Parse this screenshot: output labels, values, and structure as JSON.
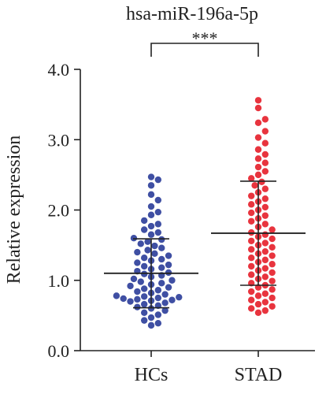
{
  "chart_data": {
    "type": "scatter",
    "title": "hsa-miR-196a-5p",
    "ylabel": "Relative expression",
    "xlabel": "",
    "categories": [
      "HCs",
      "STAD"
    ],
    "yticks": [
      "0.0",
      "1.0",
      "2.0",
      "3.0",
      "4.0"
    ],
    "ylim": [
      0,
      4.0
    ],
    "grid": false,
    "significance": {
      "label": "***",
      "between": [
        "HCs",
        "STAD"
      ]
    },
    "series": [
      {
        "category": "HCs",
        "color": "#3f4fa3",
        "mean": 1.1,
        "sd_upper": 1.59,
        "sd_lower": 0.61,
        "values": [
          2.47,
          2.43,
          2.35,
          2.22,
          2.14,
          2.05,
          1.97,
          1.93,
          1.85,
          1.8,
          1.77,
          1.72,
          1.68,
          1.65,
          1.6,
          1.58,
          1.55,
          1.52,
          1.49,
          1.46,
          1.43,
          1.4,
          1.38,
          1.35,
          1.32,
          1.3,
          1.28,
          1.25,
          1.22,
          1.2,
          1.18,
          1.16,
          1.13,
          1.11,
          1.09,
          1.07,
          1.05,
          1.02,
          1.0,
          0.98,
          0.96,
          0.94,
          0.92,
          0.9,
          0.88,
          0.86,
          0.84,
          0.82,
          0.8,
          0.78,
          0.77,
          0.76,
          0.75,
          0.74,
          0.73,
          0.72,
          0.71,
          0.7,
          0.68,
          0.66,
          0.64,
          0.62,
          0.6,
          0.57,
          0.54,
          0.51,
          0.47,
          0.43,
          0.39,
          0.36
        ]
      },
      {
        "category": "STAD",
        "color": "#e8343e",
        "mean": 1.67,
        "sd_upper": 2.41,
        "sd_lower": 0.93,
        "values": [
          3.56,
          3.45,
          3.29,
          3.24,
          3.12,
          3.03,
          2.95,
          2.86,
          2.79,
          2.73,
          2.67,
          2.61,
          2.55,
          2.5,
          2.45,
          2.4,
          2.35,
          2.3,
          2.25,
          2.2,
          2.16,
          2.12,
          2.08,
          2.04,
          2.0,
          1.96,
          1.92,
          1.88,
          1.84,
          1.8,
          1.76,
          1.72,
          1.68,
          1.65,
          1.62,
          1.59,
          1.56,
          1.53,
          1.5,
          1.47,
          1.44,
          1.41,
          1.38,
          1.35,
          1.32,
          1.29,
          1.26,
          1.23,
          1.2,
          1.17,
          1.14,
          1.11,
          1.08,
          1.05,
          1.02,
          0.99,
          0.96,
          0.93,
          0.9,
          0.87,
          0.84,
          0.81,
          0.78,
          0.75,
          0.72,
          0.69,
          0.66,
          0.63,
          0.6,
          0.57,
          0.54
        ]
      }
    ]
  }
}
